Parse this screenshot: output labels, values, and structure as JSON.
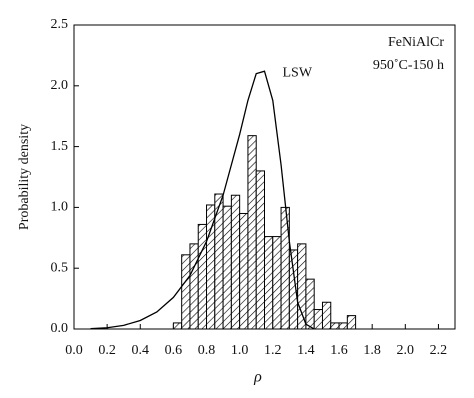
{
  "chart_data": {
    "type": "histogram",
    "xlabel": "ρ",
    "ylabel": "Probability density",
    "bins": [
      0.6,
      0.65,
      0.7,
      0.75,
      0.8,
      0.85,
      0.9,
      0.95,
      1.0,
      1.05,
      1.1,
      1.15,
      1.2,
      1.25,
      1.3,
      1.35,
      1.4,
      1.45,
      1.5,
      1.55,
      1.6,
      1.65,
      1.7
    ],
    "values": [
      0.05,
      0.61,
      0.7,
      0.86,
      1.02,
      1.11,
      1.01,
      1.1,
      0.95,
      1.59,
      1.3,
      0.76,
      0.76,
      1.0,
      0.65,
      0.7,
      0.41,
      0.16,
      0.22,
      0.05,
      0.05,
      0.11
    ],
    "series": [
      {
        "name": "LSW",
        "color": "#000000",
        "x": [
          0.1,
          0.2,
          0.3,
          0.4,
          0.5,
          0.6,
          0.7,
          0.8,
          0.9,
          1.0,
          1.05,
          1.1,
          1.15,
          1.2,
          1.25,
          1.3,
          1.35,
          1.4,
          1.45
        ],
        "values": [
          0.003,
          0.01,
          0.03,
          0.07,
          0.14,
          0.26,
          0.44,
          0.72,
          1.1,
          1.6,
          1.88,
          2.1,
          2.12,
          1.88,
          1.35,
          0.72,
          0.22,
          0.04,
          0.0
        ]
      }
    ],
    "annotations": [
      {
        "text": "FeNiAlCr"
      },
      {
        "text": "950˚C-150 h"
      }
    ],
    "xlim": [
      0,
      2.3
    ],
    "ylim": [
      0,
      2.5
    ],
    "xticks": [
      {
        "value": 0,
        "label": "0.0"
      },
      {
        "value": 0.2,
        "label": "0.2"
      },
      {
        "value": 0.4,
        "label": "0.4"
      },
      {
        "value": 0.6,
        "label": "0.6"
      },
      {
        "value": 0.8,
        "label": "0.8"
      },
      {
        "value": 1,
        "label": "1.0"
      },
      {
        "value": 1.2,
        "label": "1.2"
      },
      {
        "value": 1.4,
        "label": "1.4"
      },
      {
        "value": 1.6,
        "label": "1.6"
      },
      {
        "value": 1.8,
        "label": "1.8"
      },
      {
        "value": 2,
        "label": "2.0"
      },
      {
        "value": 2.2,
        "label": "2.2"
      }
    ],
    "yticks": [
      {
        "value": 0,
        "label": "0.0"
      },
      {
        "value": 0.5,
        "label": "0.5"
      },
      {
        "value": 1,
        "label": "1.0"
      },
      {
        "value": 1.5,
        "label": "1.5"
      },
      {
        "value": 2,
        "label": "2.0"
      },
      {
        "value": 2.5,
        "label": "2.5"
      }
    ]
  }
}
